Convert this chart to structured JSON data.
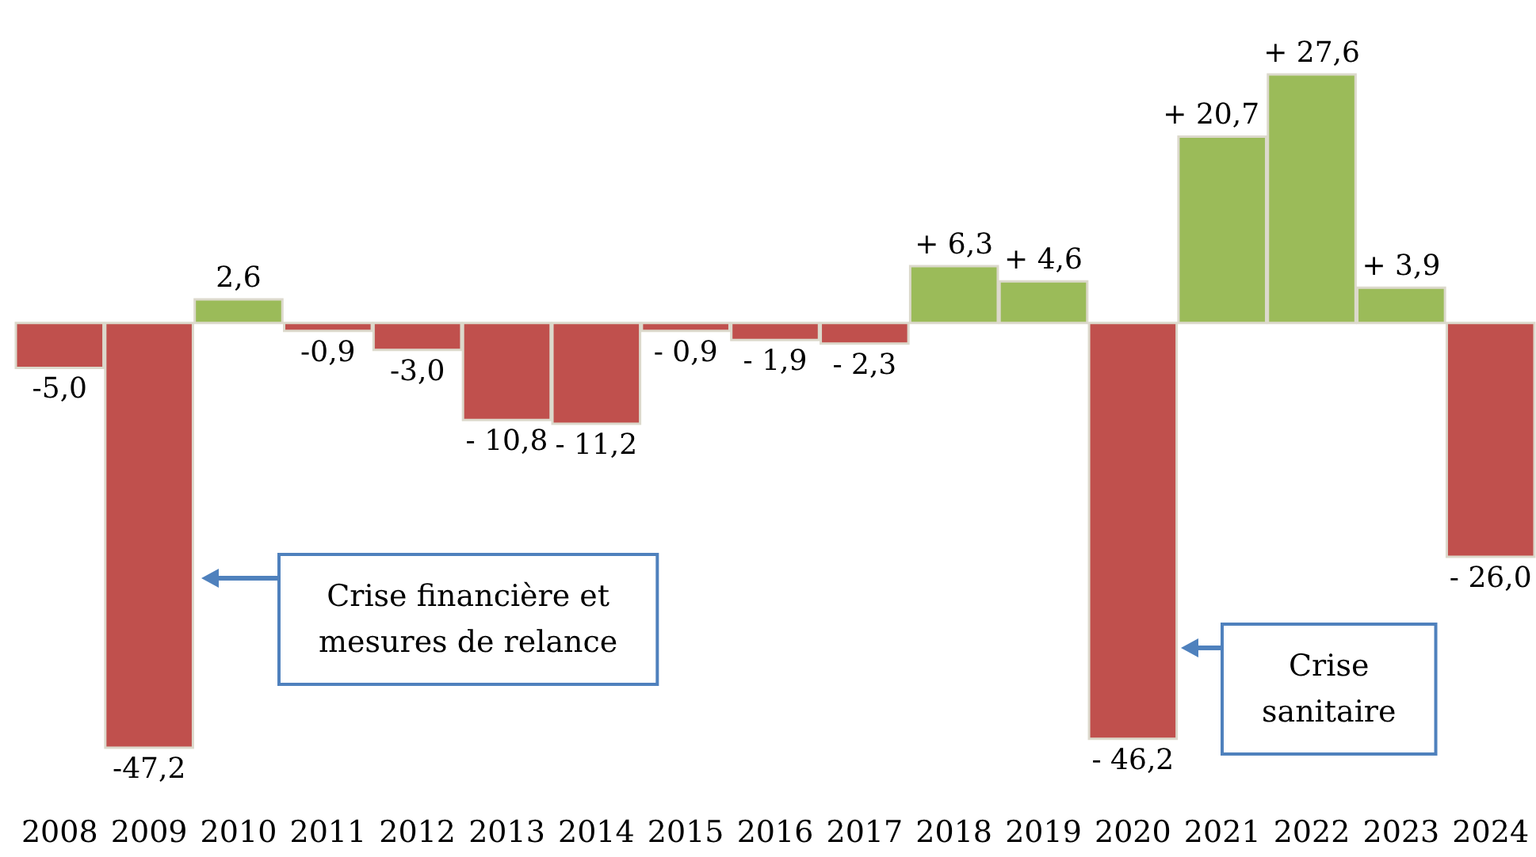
{
  "chart_data": {
    "type": "bar",
    "categories": [
      "2008",
      "2009",
      "2010",
      "2011",
      "2012",
      "2013",
      "2014",
      "2015",
      "2016",
      "2017",
      "2018",
      "2019",
      "2020",
      "2021",
      "2022",
      "2023",
      "2024"
    ],
    "values": [
      -5.0,
      -47.2,
      2.6,
      -0.9,
      -3.0,
      -10.8,
      -11.2,
      -0.9,
      -1.9,
      -2.3,
      6.3,
      4.6,
      -46.2,
      20.7,
      27.6,
      3.9,
      -26.0
    ],
    "colors": [
      "#c0504d",
      "#c0504d",
      "#9bbb59",
      "#c0504d",
      "#c0504d",
      "#c0504d",
      "#c0504d",
      "#c0504d",
      "#c0504d",
      "#c0504d",
      "#9bbb59",
      "#9bbb59",
      "#c0504d",
      "#9bbb59",
      "#9bbb59",
      "#9bbb59",
      "#c0504d"
    ],
    "value_labels": [
      "-5,0",
      "-47,2",
      "2,6",
      "-0,9",
      "-3,0",
      "- 10,8",
      "- 11,2",
      "- 0,9",
      "- 1,9",
      "- 2,3",
      "+ 6,3",
      "+ 4,6",
      "- 46,2",
      "+ 20,7",
      "+ 27,6",
      "+ 3,9",
      "- 26,0"
    ],
    "annotations": [
      "Crise financière et\nmesures de relance",
      "Crise\nsanitaire"
    ],
    "tick_labels": "x"
  }
}
